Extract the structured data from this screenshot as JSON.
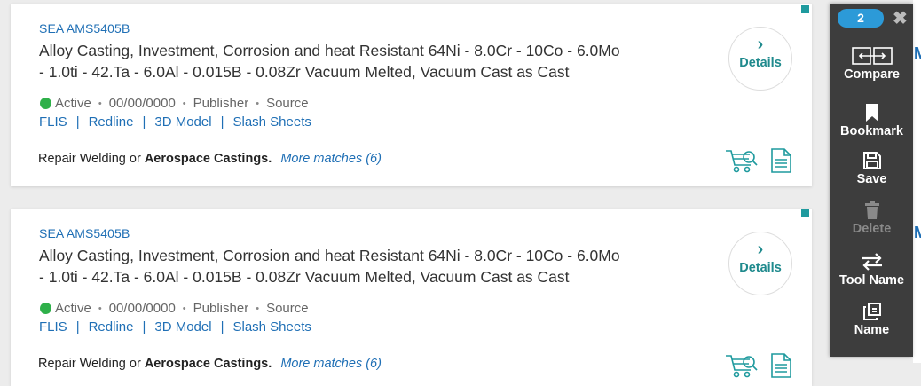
{
  "results": [
    {
      "doc_id": "SEA AMS5405B",
      "title_line1": "Alloy Casting, Investment, Corrosion and heat Resistant 64Ni - 8.0Cr - 10Co - 6.0Mo",
      "title_line2": "- 1.0ti - 42.Ta - 6.0Al - 0.015B - 0.08Zr Vacuum Melted, Vacuum Cast as Cast",
      "status": "Active",
      "date": "00/00/0000",
      "publisher": "Publisher",
      "source": "Source",
      "links": [
        "FLIS",
        "Redline",
        "3D Model",
        "Slash Sheets"
      ],
      "match_prefix": "Repair Welding or",
      "match_term": "Aerospace Castings.",
      "more_matches": "More matches (6)",
      "details_label": "Details",
      "details_chevron": "›"
    },
    {
      "doc_id": "SEA AMS5405B",
      "title_line1": "Alloy Casting, Investment, Corrosion and heat Resistant 64Ni - 8.0Cr - 10Co - 6.0Mo",
      "title_line2": "- 1.0ti - 42.Ta - 6.0Al - 0.015B - 0.08Zr Vacuum Melted, Vacuum Cast as Cast",
      "status": "Active",
      "date": "00/00/0000",
      "publisher": "Publisher",
      "source": "Source",
      "links": [
        "FLIS",
        "Redline",
        "3D Model",
        "Slash Sheets"
      ],
      "match_prefix": "Repair Welding or",
      "match_term": "Aerospace Castings.",
      "more_matches": "More matches (6)",
      "details_label": "Details",
      "details_chevron": "›"
    }
  ],
  "separators": {
    "dot": "•",
    "pipe": "|"
  },
  "toolbar": {
    "count": "2",
    "close": "✖",
    "items": [
      {
        "label": "Compare",
        "icon": "compare-icon",
        "enabled": true
      },
      {
        "label": "Bookmark",
        "icon": "bookmark-icon",
        "enabled": true
      },
      {
        "label": "Save",
        "icon": "save-icon",
        "enabled": true
      },
      {
        "label": "Delete",
        "icon": "trash-icon",
        "enabled": false
      },
      {
        "label": "Tool Name",
        "icon": "swap-arrows-icon",
        "enabled": true
      },
      {
        "label": "Name",
        "icon": "copy-icon",
        "enabled": true
      }
    ]
  },
  "right_peek": {
    "letter": "M"
  },
  "colors": {
    "link": "#1f6fb5",
    "accent_teal": "#1f8a8d",
    "status_active": "#2fb04a",
    "badge": "#2c9ad8",
    "toolbar_bg": "#3d3d3d"
  }
}
